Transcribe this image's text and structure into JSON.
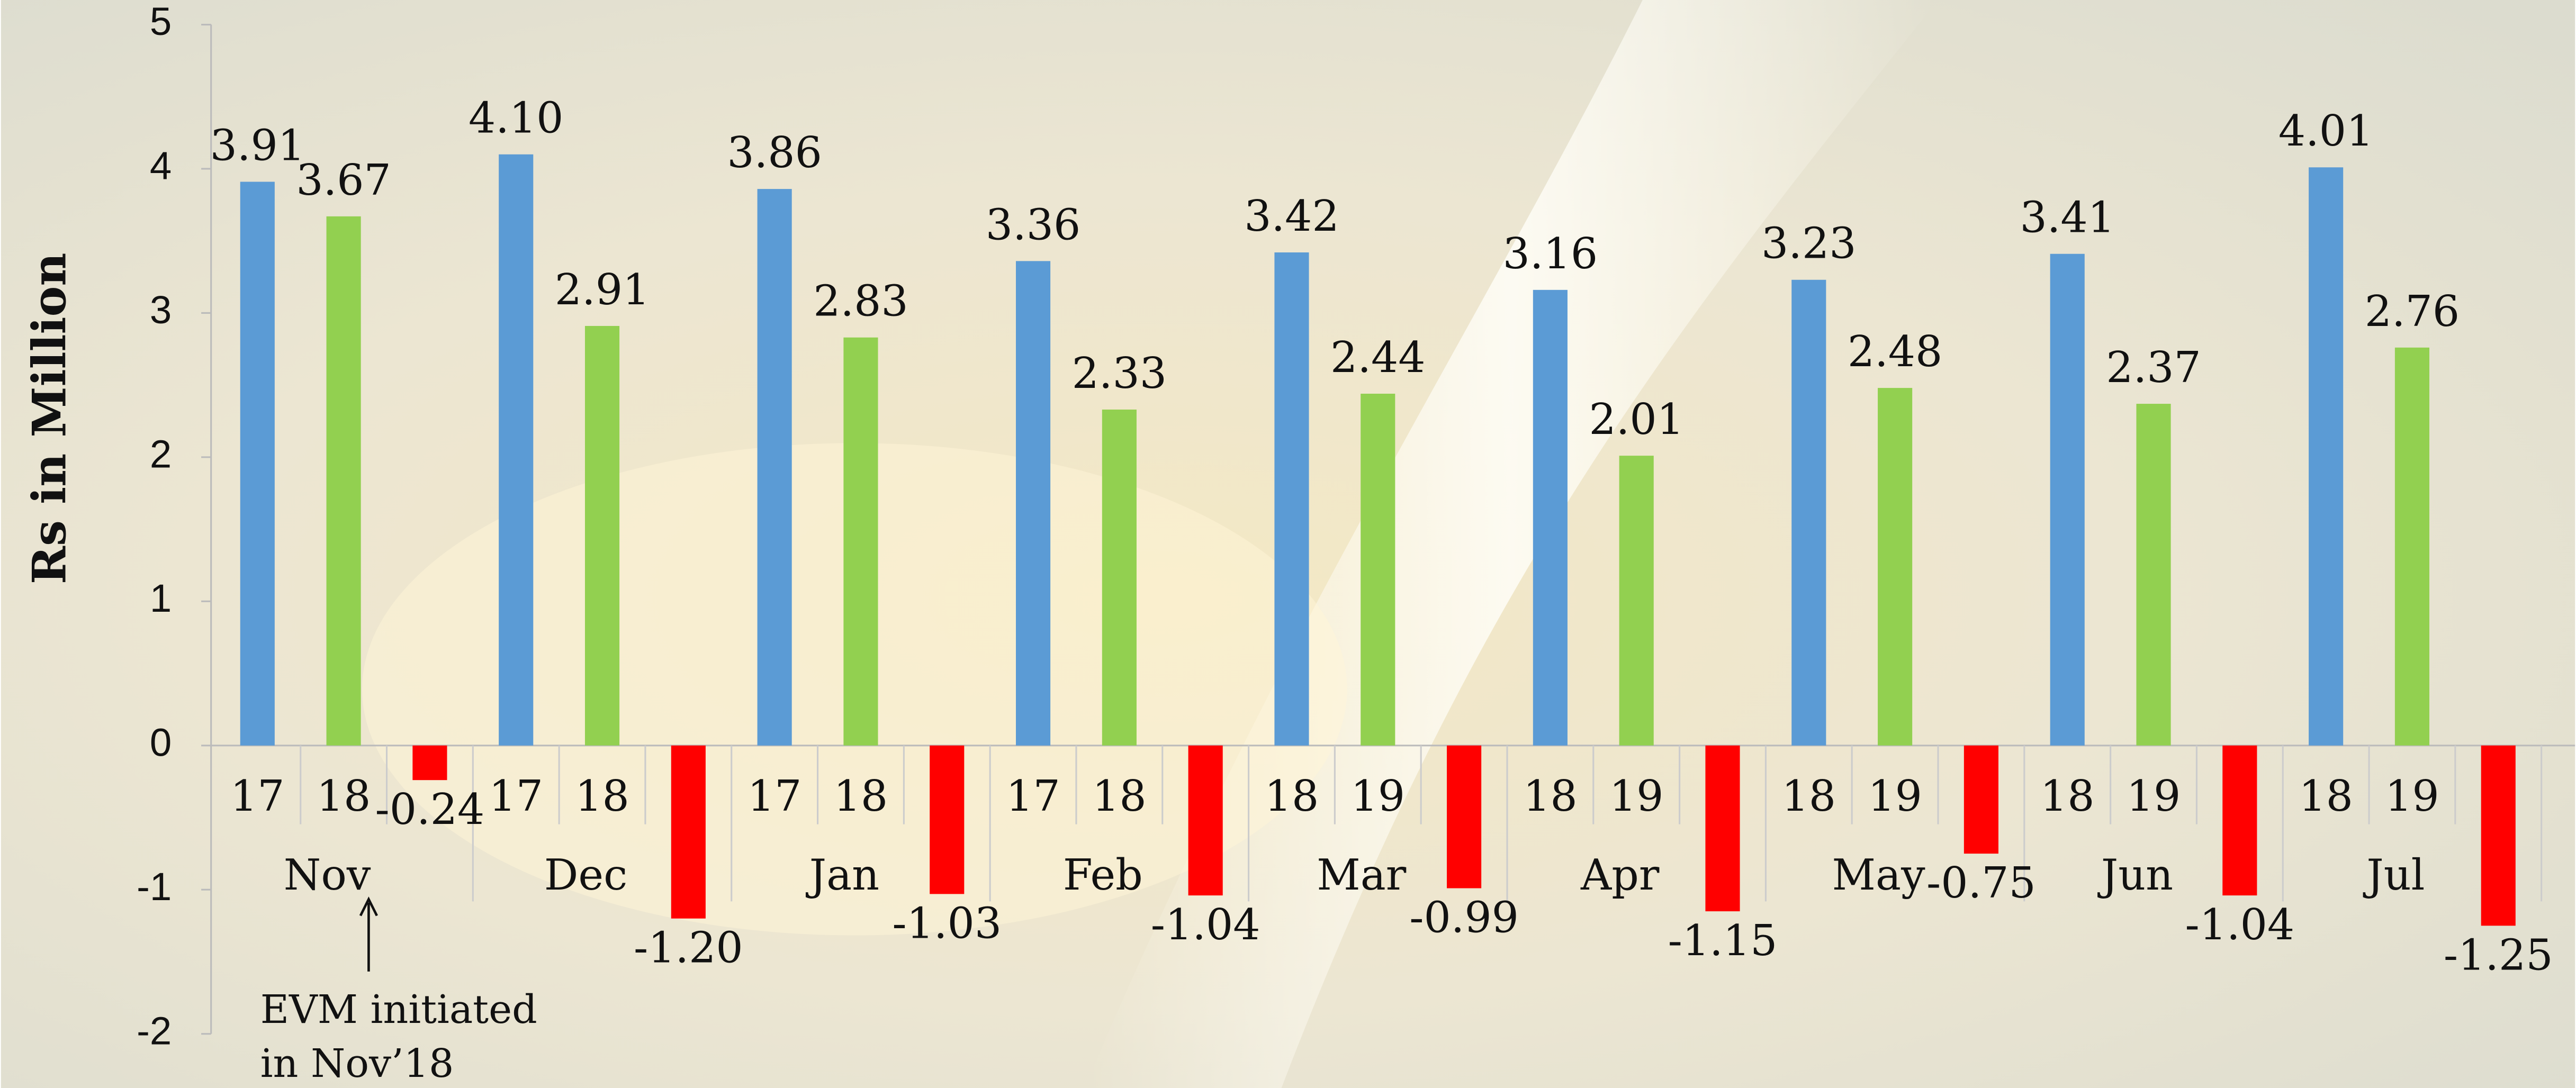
{
  "chart_data": {
    "type": "bar",
    "y_label": "Rs in Million",
    "groups": [
      {
        "month": "Nov",
        "years": [
          "17",
          "18"
        ]
      },
      {
        "month": "Dec",
        "years": [
          "17",
          "18"
        ]
      },
      {
        "month": "Jan",
        "years": [
          "17",
          "18"
        ]
      },
      {
        "month": "Feb",
        "years": [
          "17",
          "18"
        ]
      },
      {
        "month": "Mar",
        "years": [
          "18",
          "19"
        ]
      },
      {
        "month": "Apr",
        "years": [
          "18",
          "19"
        ]
      },
      {
        "month": "May",
        "years": [
          "18",
          "19"
        ]
      },
      {
        "month": "Jun",
        "years": [
          "18",
          "19"
        ]
      },
      {
        "month": "Jul",
        "years": [
          "18",
          "19"
        ]
      }
    ],
    "series": [
      {
        "color": "#5b9bd5",
        "values": [
          3.91,
          4.1,
          3.86,
          3.36,
          3.42,
          3.16,
          3.23,
          3.41,
          4.01
        ],
        "value_labels": [
          "3.91",
          "4.10",
          "3.86",
          "3.36",
          "3.42",
          "3.16",
          "3.23",
          "3.41",
          "4.01"
        ]
      },
      {
        "color": "#92d050",
        "values": [
          3.67,
          2.91,
          2.83,
          2.33,
          2.44,
          2.01,
          2.48,
          2.37,
          2.76
        ],
        "value_labels": [
          "3.67",
          "2.91",
          "2.83",
          "2.33",
          "2.44",
          "2.01",
          "2.48",
          "2.37",
          "2.76"
        ]
      },
      {
        "color": "#ff0000",
        "values": [
          -0.24,
          -1.2,
          -1.03,
          -1.04,
          -0.99,
          -1.15,
          -0.75,
          -1.04,
          -1.25
        ],
        "value_labels": [
          "-0.24",
          "-1.20",
          "-1.03",
          "-1.04",
          "-0.99",
          "-1.15",
          "-0.75",
          "-1.04",
          "-1.25"
        ]
      }
    ],
    "ylim": [
      -2,
      5
    ],
    "yticks": [
      -2,
      -1,
      0,
      1,
      2,
      3,
      4,
      5
    ],
    "annotation": [
      "EVM initiated",
      "in Nov’18"
    ]
  }
}
